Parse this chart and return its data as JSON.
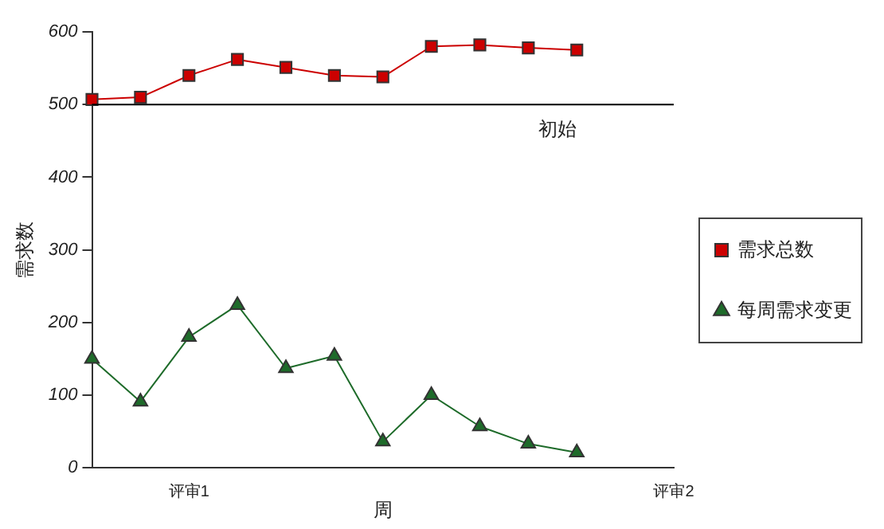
{
  "chart_data": {
    "type": "line",
    "xlabel": "周",
    "ylabel": "需求数",
    "categories": [
      null,
      null,
      "评审1",
      null,
      null,
      null,
      null,
      null,
      null,
      null,
      null,
      null,
      "评审2"
    ],
    "series": [
      {
        "name": "需求总数",
        "color": "#cc0000",
        "marker": "square",
        "values": [
          507,
          510,
          540,
          562,
          551,
          540,
          538,
          580,
          582,
          578,
          575,
          null,
          null
        ]
      },
      {
        "name": "每周需求变更",
        "color": "#1e6b2a",
        "marker": "triangle",
        "values": [
          150,
          91,
          180,
          224,
          137,
          154,
          36,
          100,
          57,
          33,
          21,
          null,
          null
        ]
      }
    ],
    "ylim": [
      0,
      600
    ],
    "yticks": [
      0,
      100,
      200,
      300,
      400,
      500,
      600
    ],
    "ref_lines": [
      {
        "axis": "y",
        "value": 500,
        "label": "初始",
        "color": "#000000"
      }
    ],
    "grid": false,
    "legend": "right",
    "line_style": "solid"
  }
}
